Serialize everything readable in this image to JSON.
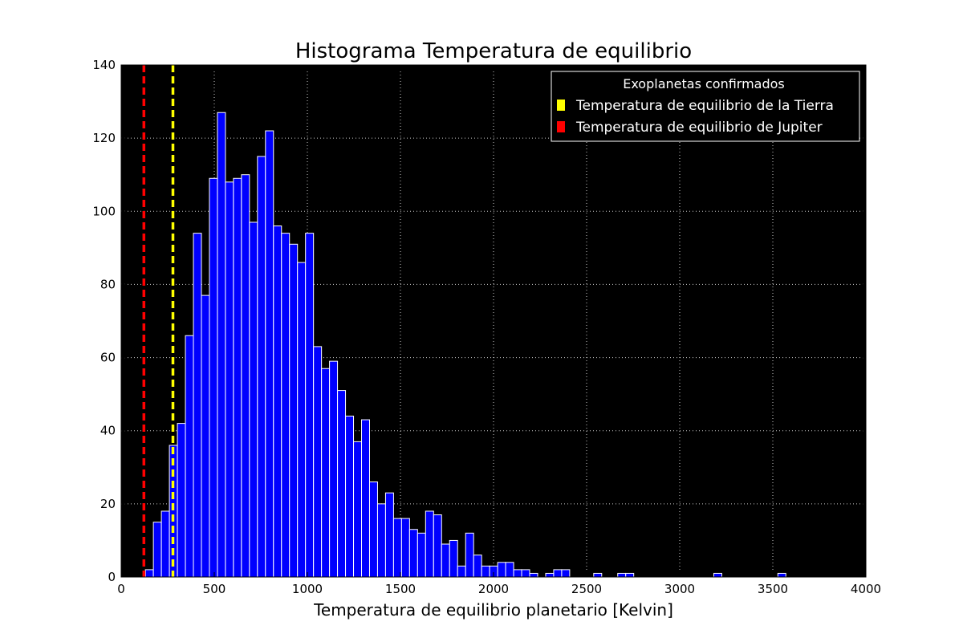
{
  "chart_data": {
    "type": "bar",
    "title": "Histograma Temperatura de equilibrio",
    "xlabel": "Temperatura de equilibrio planetario [Kelvin]",
    "ylabel": "",
    "xlim": [
      0,
      4000
    ],
    "ylim": [
      0,
      140
    ],
    "xticks": [
      0,
      500,
      1000,
      1500,
      2000,
      2500,
      3000,
      3500,
      4000
    ],
    "yticks": [
      0,
      20,
      40,
      60,
      80,
      100,
      120,
      140
    ],
    "grid": true,
    "background": "#000000",
    "bar_color": "#0000ff",
    "bar_edge_color": "#ffffff",
    "bin_width": 43,
    "bins": [
      {
        "x": 130,
        "count": 2
      },
      {
        "x": 173,
        "count": 15
      },
      {
        "x": 216,
        "count": 18
      },
      {
        "x": 259,
        "count": 36
      },
      {
        "x": 302,
        "count": 42
      },
      {
        "x": 345,
        "count": 66
      },
      {
        "x": 388,
        "count": 94
      },
      {
        "x": 431,
        "count": 77
      },
      {
        "x": 474,
        "count": 109
      },
      {
        "x": 517,
        "count": 127
      },
      {
        "x": 560,
        "count": 108
      },
      {
        "x": 603,
        "count": 109
      },
      {
        "x": 646,
        "count": 110
      },
      {
        "x": 689,
        "count": 97
      },
      {
        "x": 732,
        "count": 115
      },
      {
        "x": 775,
        "count": 122
      },
      {
        "x": 818,
        "count": 96
      },
      {
        "x": 861,
        "count": 94
      },
      {
        "x": 904,
        "count": 91
      },
      {
        "x": 947,
        "count": 86
      },
      {
        "x": 990,
        "count": 94
      },
      {
        "x": 1033,
        "count": 63
      },
      {
        "x": 1076,
        "count": 57
      },
      {
        "x": 1119,
        "count": 59
      },
      {
        "x": 1162,
        "count": 51
      },
      {
        "x": 1205,
        "count": 44
      },
      {
        "x": 1248,
        "count": 37
      },
      {
        "x": 1291,
        "count": 43
      },
      {
        "x": 1334,
        "count": 26
      },
      {
        "x": 1377,
        "count": 20
      },
      {
        "x": 1420,
        "count": 23
      },
      {
        "x": 1463,
        "count": 16
      },
      {
        "x": 1506,
        "count": 16
      },
      {
        "x": 1549,
        "count": 13
      },
      {
        "x": 1592,
        "count": 12
      },
      {
        "x": 1635,
        "count": 18
      },
      {
        "x": 1678,
        "count": 17
      },
      {
        "x": 1721,
        "count": 9
      },
      {
        "x": 1764,
        "count": 10
      },
      {
        "x": 1807,
        "count": 3
      },
      {
        "x": 1850,
        "count": 12
      },
      {
        "x": 1893,
        "count": 6
      },
      {
        "x": 1936,
        "count": 3
      },
      {
        "x": 1979,
        "count": 3
      },
      {
        "x": 2022,
        "count": 4
      },
      {
        "x": 2065,
        "count": 4
      },
      {
        "x": 2108,
        "count": 2
      },
      {
        "x": 2151,
        "count": 2
      },
      {
        "x": 2194,
        "count": 1
      },
      {
        "x": 2280,
        "count": 1
      },
      {
        "x": 2323,
        "count": 2
      },
      {
        "x": 2366,
        "count": 2
      },
      {
        "x": 2538,
        "count": 1
      },
      {
        "x": 2667,
        "count": 1
      },
      {
        "x": 2710,
        "count": 1
      },
      {
        "x": 3183,
        "count": 1
      },
      {
        "x": 3527,
        "count": 1
      }
    ],
    "reference_lines": [
      {
        "name": "Temperatura de equilibrio de la Tierra",
        "x": 278,
        "color": "#ffff00"
      },
      {
        "name": "Temperatura de equilibrio de Jupiter",
        "x": 122,
        "color": "#ff0000"
      }
    ],
    "legend": {
      "title": "Exoplanetas confirmados",
      "placement": "top-right",
      "entries": [
        {
          "label": "Temperatura de equilibrio de la Tierra",
          "color": "#ffff00"
        },
        {
          "label": "Temperatura de equilibrio de Jupiter",
          "color": "#ff0000"
        }
      ]
    }
  }
}
